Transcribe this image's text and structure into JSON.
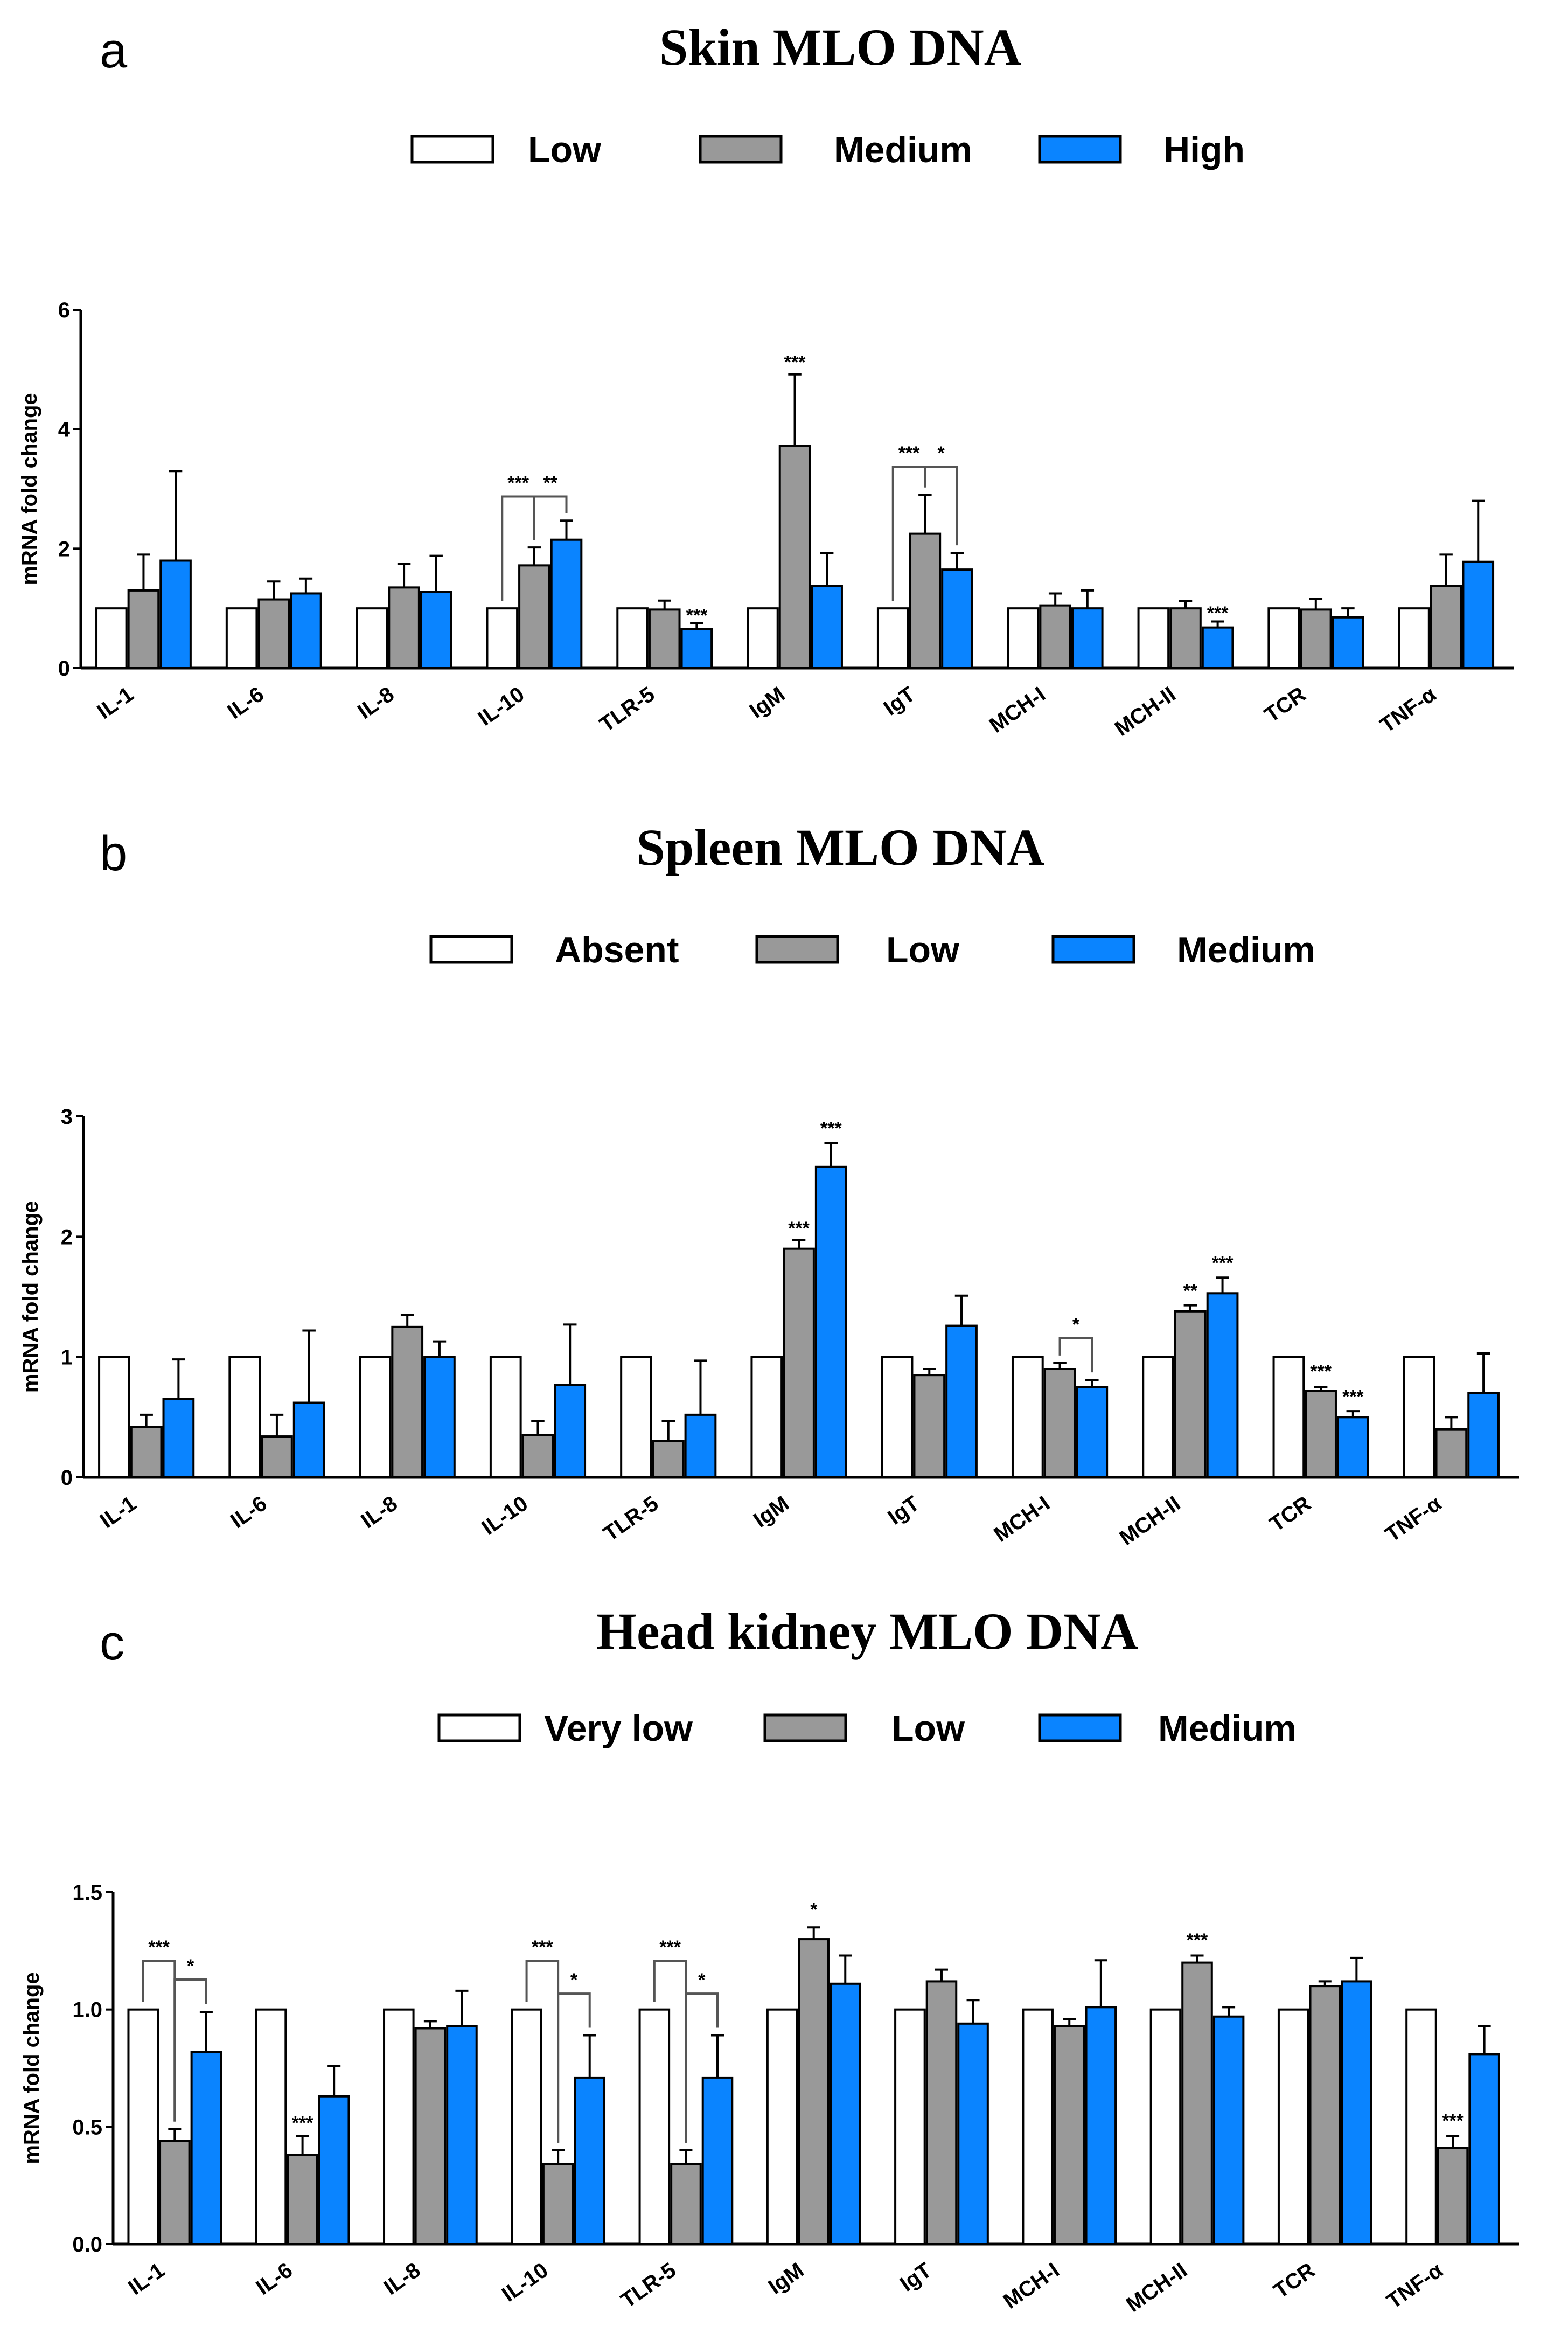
{
  "colors": {
    "white_bar": "#ffffff",
    "gray_bar": "#999999",
    "blue_bar": "#0a84ff",
    "stroke": "#000000"
  },
  "chart_data": [
    {
      "type": "bar",
      "panel": "a",
      "title": "Skin MLO DNA",
      "ylabel": "mRNA fold change",
      "xlabel": "",
      "ylim": [
        0,
        6
      ],
      "yticks": [
        "0",
        "2",
        "4",
        "6"
      ],
      "categories": [
        "IL-1",
        "IL-6",
        "IL-8",
        "IL-10",
        "TLR-5",
        "IgM",
        "IgT",
        "MCH-I",
        "MCH-II",
        "TCR",
        "TNF-α"
      ],
      "series": [
        {
          "name": "Low",
          "values": [
            1,
            1,
            1,
            1,
            1,
            1,
            1,
            1,
            1,
            1,
            1
          ],
          "errors": [
            0,
            0,
            0,
            0,
            0,
            0,
            0,
            0,
            0,
            0,
            0
          ]
        },
        {
          "name": "Medium",
          "values": [
            1.3,
            1.15,
            1.35,
            1.72,
            0.98,
            3.72,
            2.25,
            1.05,
            1.0,
            0.98,
            1.38
          ],
          "errors": [
            0.6,
            0.3,
            0.4,
            0.3,
            0.15,
            1.2,
            0.65,
            0.2,
            0.12,
            0.18,
            0.52
          ]
        },
        {
          "name": "High",
          "values": [
            1.8,
            1.25,
            1.28,
            2.15,
            0.65,
            1.38,
            1.65,
            1.0,
            0.68,
            0.85,
            1.78
          ],
          "errors": [
            1.5,
            0.25,
            0.6,
            0.32,
            0.1,
            0.55,
            0.28,
            0.3,
            0.1,
            0.15,
            1.02
          ]
        }
      ],
      "annotations": [
        {
          "text": "***",
          "cat": 3,
          "series": 1,
          "value": 3.0,
          "bracket": [
            0,
            1
          ]
        },
        {
          "text": "**",
          "cat": 3,
          "series": 2,
          "value": 3.0,
          "bracket": [
            1,
            2
          ]
        },
        {
          "text": "***",
          "cat": 4,
          "series": 2,
          "value": 0.78
        },
        {
          "text": "***",
          "cat": 5,
          "series": 1,
          "value": 5.02
        },
        {
          "text": "***",
          "cat": 6,
          "series": 1,
          "value": 3.5,
          "bracket": [
            0,
            1
          ]
        },
        {
          "text": "*",
          "cat": 6,
          "series": 2,
          "value": 3.5,
          "bracket": [
            1,
            2
          ]
        },
        {
          "text": "***",
          "cat": 8,
          "series": 2,
          "value": 0.82
        }
      ]
    },
    {
      "type": "bar",
      "panel": "b",
      "title": "Spleen MLO DNA",
      "ylabel": "mRNA fold change",
      "xlabel": "",
      "ylim": [
        0,
        3
      ],
      "yticks": [
        "0",
        "1",
        "2",
        "3"
      ],
      "categories": [
        "IL-1",
        "IL-6",
        "IL-8",
        "IL-10",
        "TLR-5",
        "IgM",
        "IgT",
        "MCH-I",
        "MCH-II",
        "TCR",
        "TNF-α"
      ],
      "series": [
        {
          "name": "Absent",
          "values": [
            1,
            1,
            1,
            1,
            1,
            1,
            1,
            1,
            1,
            1,
            1
          ],
          "errors": [
            0,
            0,
            0,
            0,
            0,
            0,
            0,
            0,
            0,
            0,
            0
          ]
        },
        {
          "name": "Low",
          "values": [
            0.42,
            0.34,
            1.25,
            0.35,
            0.3,
            1.9,
            0.85,
            0.9,
            1.38,
            0.72,
            0.4
          ],
          "errors": [
            0.1,
            0.18,
            0.1,
            0.12,
            0.17,
            0.07,
            0.05,
            0.05,
            0.05,
            0.03,
            0.1
          ]
        },
        {
          "name": "Medium",
          "values": [
            0.65,
            0.62,
            1.0,
            0.77,
            0.52,
            2.58,
            1.26,
            0.75,
            1.53,
            0.5,
            0.7
          ],
          "errors": [
            0.33,
            0.6,
            0.13,
            0.5,
            0.45,
            0.2,
            0.25,
            0.06,
            0.13,
            0.05,
            0.33
          ]
        }
      ],
      "annotations": [
        {
          "text": "***",
          "cat": 5,
          "series": 1,
          "value": 2.02
        },
        {
          "text": "***",
          "cat": 5,
          "series": 2,
          "value": 2.85
        },
        {
          "text": "*",
          "cat": 7,
          "series": 2,
          "value": 1.22,
          "bracket": [
            1,
            2
          ]
        },
        {
          "text": "**",
          "cat": 8,
          "series": 1,
          "value": 1.5
        },
        {
          "text": "***",
          "cat": 8,
          "series": 2,
          "value": 1.73
        },
        {
          "text": "***",
          "cat": 9,
          "series": 1,
          "value": 0.83
        },
        {
          "text": "***",
          "cat": 9,
          "series": 2,
          "value": 0.62
        }
      ]
    },
    {
      "type": "bar",
      "panel": "c",
      "title": "Head kidney MLO DNA",
      "ylabel": "mRNA fold change",
      "xlabel": "",
      "ylim": [
        0,
        1.5
      ],
      "yticks": [
        "0.0",
        "0.5",
        "1.0",
        "1.5"
      ],
      "categories": [
        "IL-1",
        "IL-6",
        "IL-8",
        "IL-10",
        "TLR-5",
        "IgM",
        "IgT",
        "MCH-I",
        "MCH-II",
        "TCR",
        "TNF-α"
      ],
      "series": [
        {
          "name": "Very low",
          "values": [
            1,
            1,
            1,
            1,
            1,
            1,
            1,
            1,
            1,
            1,
            1
          ],
          "errors": [
            0,
            0,
            0,
            0,
            0,
            0,
            0,
            0,
            0,
            0,
            0
          ]
        },
        {
          "name": "Low",
          "values": [
            0.44,
            0.38,
            0.92,
            0.34,
            0.34,
            1.3,
            1.12,
            0.93,
            1.2,
            1.1,
            0.41
          ],
          "errors": [
            0.05,
            0.08,
            0.03,
            0.06,
            0.06,
            0.05,
            0.05,
            0.03,
            0.03,
            0.02,
            0.05
          ]
        },
        {
          "name": "Medium",
          "values": [
            0.82,
            0.63,
            0.93,
            0.71,
            0.71,
            1.11,
            0.94,
            1.01,
            0.97,
            1.12,
            0.81
          ],
          "errors": [
            0.17,
            0.13,
            0.15,
            0.18,
            0.18,
            0.12,
            0.1,
            0.2,
            0.04,
            0.1,
            0.12
          ]
        }
      ],
      "annotations": [
        {
          "text": "***",
          "cat": 0,
          "series": 1,
          "value": 1.24,
          "bracket": [
            0,
            1
          ]
        },
        {
          "text": "*",
          "cat": 0,
          "series": 2,
          "value": 1.16,
          "bracket": [
            1,
            2
          ]
        },
        {
          "text": "***",
          "cat": 1,
          "series": 1,
          "value": 0.49
        },
        {
          "text": "***",
          "cat": 3,
          "series": 1,
          "value": 1.24,
          "bracket": [
            0,
            1
          ]
        },
        {
          "text": "*",
          "cat": 3,
          "series": 2,
          "value": 1.1,
          "bracket": [
            1,
            2
          ]
        },
        {
          "text": "***",
          "cat": 4,
          "series": 1,
          "value": 1.24,
          "bracket": [
            0,
            1
          ]
        },
        {
          "text": "*",
          "cat": 4,
          "series": 2,
          "value": 1.1,
          "bracket": [
            1,
            2
          ]
        },
        {
          "text": "*",
          "cat": 5,
          "series": 1,
          "value": 1.4
        },
        {
          "text": "***",
          "cat": 8,
          "series": 1,
          "value": 1.27
        },
        {
          "text": "***",
          "cat": 10,
          "series": 1,
          "value": 0.5
        }
      ]
    }
  ]
}
